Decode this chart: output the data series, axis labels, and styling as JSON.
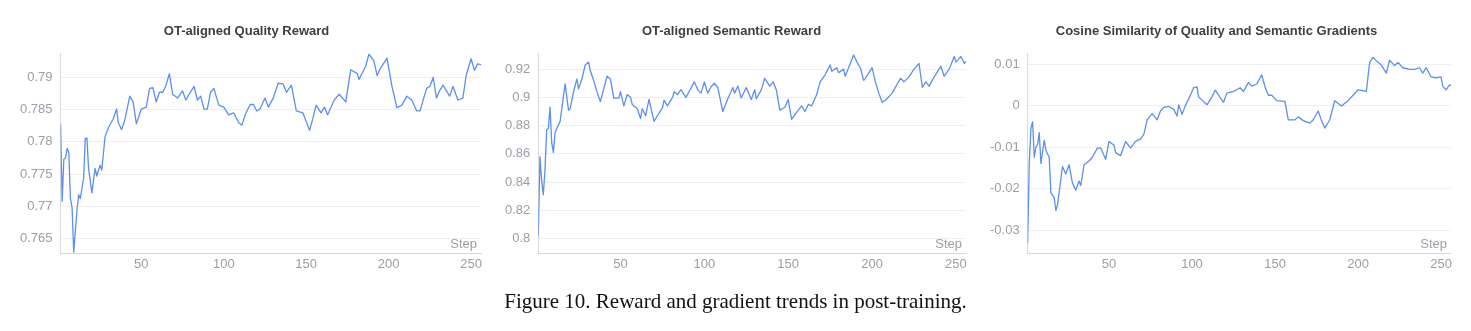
{
  "chart_data": [
    {
      "type": "line",
      "title": "OT-aligned Quality Reward",
      "xlabel": "Step",
      "color": "#5b8ff0",
      "grid": "y",
      "xlim": [
        1,
        256
      ],
      "xticks": [
        50,
        100,
        150,
        200,
        250
      ],
      "ylim": [
        0.7627,
        0.7937
      ],
      "yticks": [
        0.765,
        0.77,
        0.775,
        0.78,
        0.785,
        0.79
      ],
      "x": [
        1,
        2,
        3,
        4,
        5,
        6,
        7,
        8,
        9,
        11,
        12,
        13,
        15,
        16,
        17,
        18,
        20,
        22,
        23,
        25,
        26,
        28,
        30,
        33,
        35,
        36,
        38,
        40,
        43,
        45,
        47,
        50,
        53,
        55,
        57,
        59,
        61,
        63,
        65,
        67,
        69,
        72,
        75,
        77,
        79,
        82,
        84,
        86,
        88,
        90,
        92,
        94,
        97,
        100,
        103,
        106,
        109,
        111,
        113,
        116,
        118,
        120,
        122,
        125,
        127,
        130,
        133,
        136,
        138,
        141,
        144,
        148,
        152,
        154,
        156,
        159,
        161,
        163,
        167,
        170,
        174,
        177,
        181,
        182,
        186,
        188,
        191,
        193,
        195,
        199,
        202,
        205,
        208,
        211,
        214,
        217,
        219,
        223,
        225,
        227,
        229,
        231,
        233,
        237,
        239,
        242,
        245,
        247,
        250,
        252,
        254,
        256
      ],
      "values": [
        0.7828,
        0.7708,
        0.7773,
        0.7775,
        0.779,
        0.7784,
        0.7712,
        0.7698,
        0.7629,
        0.7695,
        0.7718,
        0.7712,
        0.7744,
        0.7805,
        0.7806,
        0.7759,
        0.7721,
        0.7759,
        0.7747,
        0.7764,
        0.7756,
        0.7808,
        0.7822,
        0.7836,
        0.7851,
        0.783,
        0.7819,
        0.7834,
        0.7871,
        0.7862,
        0.7828,
        0.7851,
        0.7854,
        0.7883,
        0.7884,
        0.7862,
        0.7877,
        0.7877,
        0.7888,
        0.7906,
        0.7874,
        0.7868,
        0.7879,
        0.7865,
        0.7874,
        0.7886,
        0.7865,
        0.7871,
        0.7851,
        0.7851,
        0.7877,
        0.7883,
        0.7857,
        0.7854,
        0.7842,
        0.7845,
        0.783,
        0.7826,
        0.7842,
        0.7858,
        0.7858,
        0.7848,
        0.7851,
        0.7868,
        0.7854,
        0.7868,
        0.7891,
        0.789,
        0.7877,
        0.7888,
        0.7848,
        0.7845,
        0.7818,
        0.7836,
        0.7857,
        0.7845,
        0.7854,
        0.7842,
        0.7865,
        0.7874,
        0.7862,
        0.7912,
        0.7906,
        0.7897,
        0.7917,
        0.7936,
        0.7926,
        0.7903,
        0.7914,
        0.793,
        0.7886,
        0.7853,
        0.7857,
        0.7871,
        0.7865,
        0.7848,
        0.7848,
        0.7883,
        0.7886,
        0.79,
        0.7868,
        0.788,
        0.7888,
        0.7871,
        0.7886,
        0.7865,
        0.7868,
        0.7903,
        0.7929,
        0.7911,
        0.7921,
        0.792
      ],
      "annotations": [
        "Figure 10. Reward and gradient trends in post-training."
      ]
    },
    {
      "type": "line",
      "title": "OT-aligned Semantic Reward",
      "xlabel": "Step",
      "color": "#5b8ff0",
      "grid": "y",
      "xlim": [
        1,
        256
      ],
      "xticks": [
        50,
        100,
        150,
        200,
        250
      ],
      "ylim": [
        0.7895,
        0.931
      ],
      "yticks": [
        0.8,
        0.82,
        0.84,
        0.86,
        0.88,
        0.9,
        0.92
      ],
      "x": [
        1,
        2,
        3,
        4,
        5,
        6,
        7,
        8,
        9,
        10,
        11,
        12,
        14,
        17,
        19,
        20,
        22,
        24,
        25,
        27,
        29,
        31,
        32,
        34,
        36,
        38,
        40,
        42,
        44,
        46,
        49,
        50,
        52,
        54,
        56,
        57,
        60,
        62,
        63,
        65,
        67,
        70,
        72,
        75,
        76,
        78,
        81,
        82,
        84,
        86,
        89,
        92,
        94,
        96,
        98,
        100,
        102,
        104,
        106,
        108,
        111,
        114,
        117,
        118,
        120,
        122,
        125,
        128,
        130,
        131,
        134,
        136,
        139,
        141,
        143,
        145,
        148,
        150,
        152,
        156,
        158,
        160,
        162,
        164,
        167,
        169,
        172,
        175,
        176,
        179,
        180,
        183,
        184,
        189,
        191,
        193,
        195,
        196,
        200,
        202,
        204,
        206,
        208,
        212,
        215,
        217,
        219,
        222,
        225,
        228,
        230,
        232,
        234,
        237,
        241,
        243,
        246,
        249,
        250,
        253,
        255,
        256
      ],
      "values": [
        0.802,
        0.858,
        0.841,
        0.831,
        0.849,
        0.877,
        0.878,
        0.893,
        0.868,
        0.861,
        0.875,
        0.878,
        0.883,
        0.9095,
        0.891,
        0.892,
        0.904,
        0.913,
        0.906,
        0.913,
        0.923,
        0.925,
        0.919,
        0.912,
        0.904,
        0.897,
        0.906,
        0.915,
        0.913,
        0.8995,
        0.8995,
        0.904,
        0.894,
        0.902,
        0.9,
        0.895,
        0.892,
        0.885,
        0.892,
        0.887,
        0.8985,
        0.883,
        0.887,
        0.8925,
        0.898,
        0.894,
        0.9,
        0.904,
        0.902,
        0.9055,
        0.9,
        0.9065,
        0.911,
        0.9055,
        0.903,
        0.911,
        0.903,
        0.9075,
        0.91,
        0.907,
        0.89,
        0.899,
        0.907,
        0.903,
        0.908,
        0.8995,
        0.907,
        0.8985,
        0.9055,
        0.899,
        0.9055,
        0.9135,
        0.908,
        0.911,
        0.905,
        0.891,
        0.893,
        0.8985,
        0.8845,
        0.891,
        0.894,
        0.89,
        0.895,
        0.894,
        0.902,
        0.911,
        0.916,
        0.923,
        0.9185,
        0.921,
        0.9175,
        0.92,
        0.915,
        0.93,
        0.925,
        0.921,
        0.912,
        0.9135,
        0.921,
        0.911,
        0.903,
        0.8965,
        0.898,
        0.903,
        0.9095,
        0.9135,
        0.911,
        0.9145,
        0.92,
        0.924,
        0.907,
        0.911,
        0.908,
        0.9145,
        0.922,
        0.915,
        0.92,
        0.929,
        0.925,
        0.929,
        0.924,
        0.9255
      ]
    },
    {
      "type": "line",
      "title": "Cosine Similarity of Quality and Semantic Gradients",
      "xlabel": "Step",
      "color": "#5b8ff0",
      "grid": "y",
      "xlim": [
        1,
        256
      ],
      "xticks": [
        50,
        100,
        150,
        200,
        250
      ],
      "ylim": [
        -0.0355,
        0.0125
      ],
      "yticks": [
        -0.03,
        -0.02,
        -0.01,
        0,
        0.01
      ],
      "x": [
        1,
        2,
        3,
        4,
        5,
        6,
        7,
        8,
        9,
        11,
        12,
        14,
        15,
        17,
        18,
        19,
        20,
        22,
        24,
        26,
        28,
        30,
        32,
        33,
        35,
        38,
        40,
        43,
        45,
        48,
        50,
        53,
        54,
        57,
        60,
        63,
        66,
        69,
        71,
        73,
        76,
        79,
        81,
        83,
        86,
        89,
        91,
        92,
        94,
        96,
        98,
        101,
        103,
        104,
        109,
        112,
        114,
        116,
        119,
        121,
        125,
        129,
        131,
        134,
        136,
        139,
        142,
        144,
        146,
        148,
        151,
        156,
        158,
        162,
        164,
        167,
        171,
        173,
        176,
        178,
        180,
        183,
        186,
        190,
        194,
        197,
        200,
        205,
        207,
        209,
        212,
        214,
        217,
        219,
        222,
        224,
        227,
        231,
        234,
        237,
        239,
        241,
        244,
        247,
        250,
        251,
        253,
        255,
        256
      ],
      "values": [
        -0.0331,
        -0.0137,
        -0.0054,
        -0.0039,
        -0.0124,
        -0.01,
        -0.0093,
        -0.0065,
        -0.0139,
        -0.0083,
        -0.0107,
        -0.0124,
        -0.0209,
        -0.0221,
        -0.0252,
        -0.0238,
        -0.0208,
        -0.0146,
        -0.0164,
        -0.0142,
        -0.0186,
        -0.0203,
        -0.0181,
        -0.0192,
        -0.0142,
        -0.0133,
        -0.0124,
        -0.0102,
        -0.0102,
        -0.0129,
        -0.0086,
        -0.0095,
        -0.0113,
        -0.012,
        -0.0086,
        -0.0102,
        -0.0086,
        -0.008,
        -0.0069,
        -0.0034,
        -0.0019,
        -0.0034,
        -0.0013,
        -0.0004,
        -0.0002,
        -0.0009,
        -0.0025,
        0.0002,
        -0.0021,
        0,
        0.0016,
        0.0043,
        0.0045,
        0.0021,
        0.0002,
        0.0021,
        0.0037,
        0.0025,
        0.0008,
        0.003,
        0.0034,
        0.0043,
        0.0034,
        0.0056,
        0.0047,
        0.0052,
        0.0074,
        0.0045,
        0.0025,
        0.0025,
        0.0012,
        0.001,
        -0.0034,
        -0.0034,
        -0.0027,
        -0.0036,
        -0.0042,
        -0.0034,
        -0.0013,
        -0.0036,
        -0.0054,
        -0.0034,
        0.0012,
        -0.0001,
        0.0012,
        0.0025,
        0.0038,
        0.0034,
        0.0104,
        0.0116,
        0.0104,
        0.0098,
        0.0078,
        0.0109,
        0.0096,
        0.0104,
        0.0091,
        0.0087,
        0.0087,
        0.0091,
        0.0078,
        0.0091,
        0.0069,
        0.0067,
        0.0069,
        0.0047,
        0.0038,
        0.0049,
        0.0049
      ]
    }
  ]
}
